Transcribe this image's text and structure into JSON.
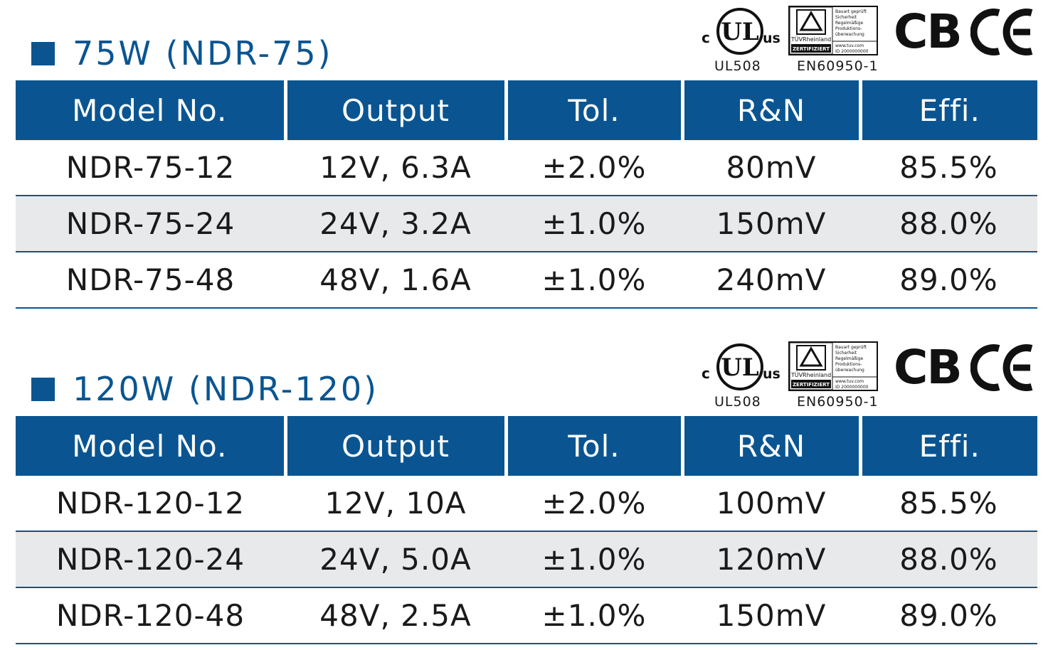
{
  "sections": [
    {
      "title": "75W (NDR-75)",
      "certs": {
        "ul_label": "UL508",
        "tuv_label": "EN60950-1",
        "cb_text": "CB",
        "ul_c": "c",
        "ul_text": "UL",
        "ul_us": "us",
        "tuv_brand": "TÜVRheinland",
        "tuv_zert": "ZERTIFIZIERT",
        "tuv_text": [
          "Bauart geprüft",
          "Sicherheit",
          "Regelmäßige",
          "Produktions-",
          "überwachung"
        ],
        "tuv_url": "www.tuv.com",
        "tuv_id": "ID 2000000000"
      },
      "headers": [
        "Model No.",
        "Output",
        "Tol.",
        "R&N",
        "Effi."
      ],
      "rows": [
        [
          "NDR-75-12",
          "12V, 6.3A",
          "±2.0%",
          "80mV",
          "85.5%"
        ],
        [
          "NDR-75-24",
          "24V, 3.2A",
          "±1.0%",
          "150mV",
          "88.0%"
        ],
        [
          "NDR-75-48",
          "48V, 1.6A",
          "±1.0%",
          "240mV",
          "89.0%"
        ]
      ]
    },
    {
      "title": "120W (NDR-120)",
      "certs": {
        "ul_label": "UL508",
        "tuv_label": "EN60950-1",
        "cb_text": "CB",
        "ul_c": "c",
        "ul_text": "UL",
        "ul_us": "us",
        "tuv_brand": "TÜVRheinland",
        "tuv_zert": "ZERTIFIZIERT",
        "tuv_text": [
          "Bauart geprüft",
          "Sicherheit",
          "Regelmäßige",
          "Produktions-",
          "überwachung"
        ],
        "tuv_url": "www.tuv.com",
        "tuv_id": "ID 2000000000"
      },
      "headers": [
        "Model No.",
        "Output",
        "Tol.",
        "R&N",
        "Effi."
      ],
      "rows": [
        [
          "NDR-120-12",
          "12V, 10A",
          "±2.0%",
          "100mV",
          "85.5%"
        ],
        [
          "NDR-120-24",
          "24V, 5.0A",
          "±1.0%",
          "120mV",
          "88.0%"
        ],
        [
          "NDR-120-48",
          "48V, 2.5A",
          "±1.0%",
          "150mV",
          "89.0%"
        ]
      ]
    }
  ],
  "colors": {
    "header_bg": "#0a5591",
    "alt_row_bg": "#e8e9eb"
  },
  "icons": [
    "square-bullet-icon",
    "cul-us-logo-icon",
    "tuv-rheinland-logo-icon",
    "cb-logo-icon",
    "ce-mark-icon"
  ]
}
